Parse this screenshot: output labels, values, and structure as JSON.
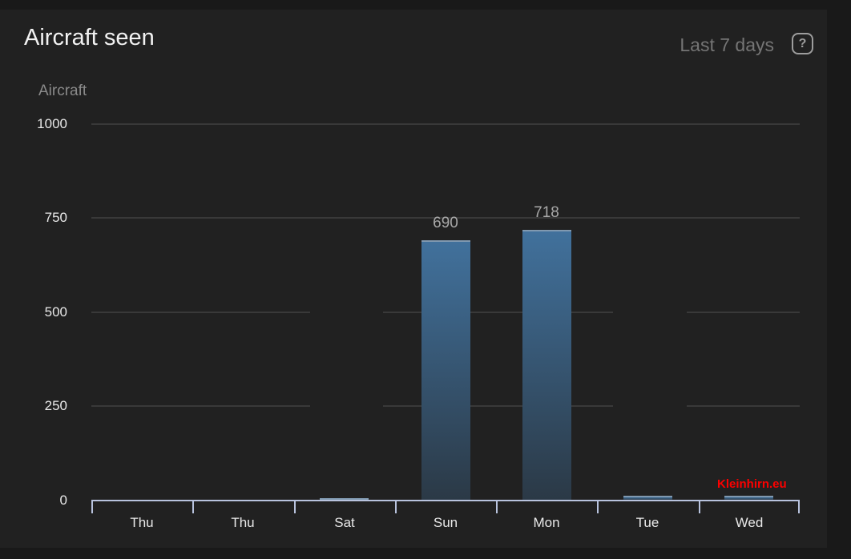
{
  "header": {
    "title": "Aircraft seen",
    "range_label": "Last 7 days",
    "help_symbol": "?"
  },
  "chart_data": {
    "type": "bar",
    "title": "Aircraft seen",
    "ylabel": "Aircraft",
    "xlabel": "",
    "categories": [
      "Thu",
      "Thu",
      "Sat",
      "Sun",
      "Mon",
      "Tue",
      "Wed"
    ],
    "values": [
      0,
      0,
      4,
      690,
      718,
      10,
      10
    ],
    "bar_labels": [
      "",
      "",
      "",
      "690",
      "718",
      "",
      ""
    ],
    "ylim": [
      0,
      1000
    ],
    "yticks": [
      0,
      250,
      500,
      750,
      1000
    ],
    "grid": "horizontal",
    "grid_full_yticks": [
      750,
      1000
    ],
    "grid_gap_categories": [
      2,
      5
    ],
    "legend": "none",
    "colors": {
      "page_background": "#191919",
      "panel_background": "#212121",
      "bar_gradient_top": "#41719c",
      "bar_gradient_bottom": "#2b3946",
      "bar_top_edge": "#8099b0",
      "axis_line": "#b8c3de",
      "gridline": "#393939",
      "title_text": "#f2f2f2",
      "axis_text": "#e9e9e9",
      "muted_text": "#757575",
      "value_label_text": "#a8a8a8",
      "watermark_text": "#fb0000"
    }
  },
  "watermark": "Kleinhirn.eu"
}
